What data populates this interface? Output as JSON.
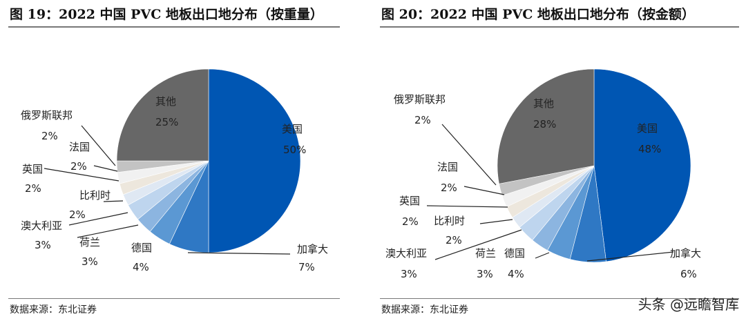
{
  "chart_data": [
    {
      "type": "pie",
      "title": "图 19：2022 中国 PVC 地板出口地分布（按重量）",
      "labels": [
        "美国",
        "加拿大",
        "德国",
        "荷兰",
        "澳大利亚",
        "比利时",
        "英国",
        "法国",
        "俄罗斯联邦",
        "其他"
      ],
      "values": [
        50,
        7,
        4,
        3,
        3,
        2,
        2,
        2,
        2,
        25
      ],
      "value_labels": [
        "50%",
        "7%",
        "4%",
        "3%",
        "3%",
        "2%",
        "2%",
        "2%",
        "2%",
        "25%"
      ]
    },
    {
      "type": "pie",
      "title": "图 20：2022 中国 PVC 地板出口地分布（按金额）",
      "labels": [
        "美国",
        "加拿大",
        "德国",
        "荷兰",
        "澳大利亚",
        "比利时",
        "英国",
        "法国",
        "俄罗斯联邦",
        "其他"
      ],
      "values": [
        48,
        6,
        4,
        3,
        3,
        2,
        2,
        2,
        2,
        28
      ],
      "value_labels": [
        "48%",
        "6%",
        "4%",
        "3%",
        "3%",
        "2%",
        "2%",
        "2%",
        "2%",
        "28%"
      ]
    }
  ],
  "colors": [
    "#0056b3",
    "#2f78c4",
    "#5b98d3",
    "#8cb5e0",
    "#bed5ee",
    "#dfe8f3",
    "#ede7dd",
    "#f1f1f1",
    "#c3c3c3",
    "#a3a3a3"
  ],
  "other_color": "#676767",
  "source": "数据来源：东北证券",
  "watermark": "头条 @远瞻智库"
}
